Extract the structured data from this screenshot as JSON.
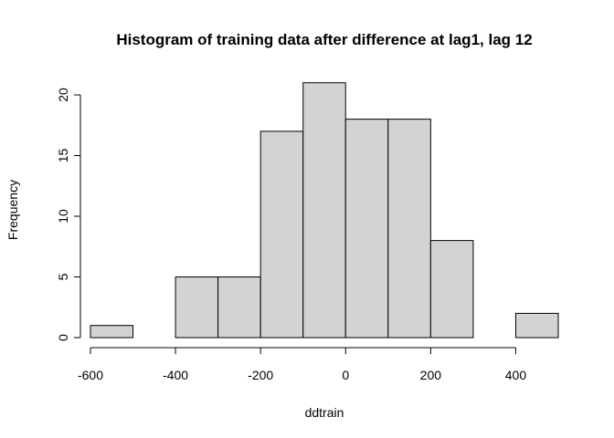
{
  "chart_data": {
    "type": "bar",
    "title": "Histogram of training data after difference at lag1, lag 12",
    "xlabel": "ddtrain",
    "ylabel": "Frequency",
    "bins": [
      {
        "from": -600,
        "to": -500,
        "count": 1
      },
      {
        "from": -500,
        "to": -400,
        "count": 0
      },
      {
        "from": -400,
        "to": -300,
        "count": 5
      },
      {
        "from": -300,
        "to": -200,
        "count": 5
      },
      {
        "from": -200,
        "to": -100,
        "count": 17
      },
      {
        "from": -100,
        "to": 0,
        "count": 21
      },
      {
        "from": 0,
        "to": 100,
        "count": 18
      },
      {
        "from": 100,
        "to": 200,
        "count": 18
      },
      {
        "from": 200,
        "to": 300,
        "count": 8
      },
      {
        "from": 300,
        "to": 400,
        "count": 0
      },
      {
        "from": 400,
        "to": 500,
        "count": 2
      }
    ],
    "xlim": [
      -600,
      500
    ],
    "ylim": [
      0,
      21
    ],
    "x_ticks": [
      -600,
      -400,
      -200,
      0,
      200,
      400
    ],
    "y_ticks": [
      0,
      5,
      10,
      15,
      20
    ],
    "bar_fill": "#d3d3d3",
    "bar_stroke": "#000000",
    "grid": false
  }
}
